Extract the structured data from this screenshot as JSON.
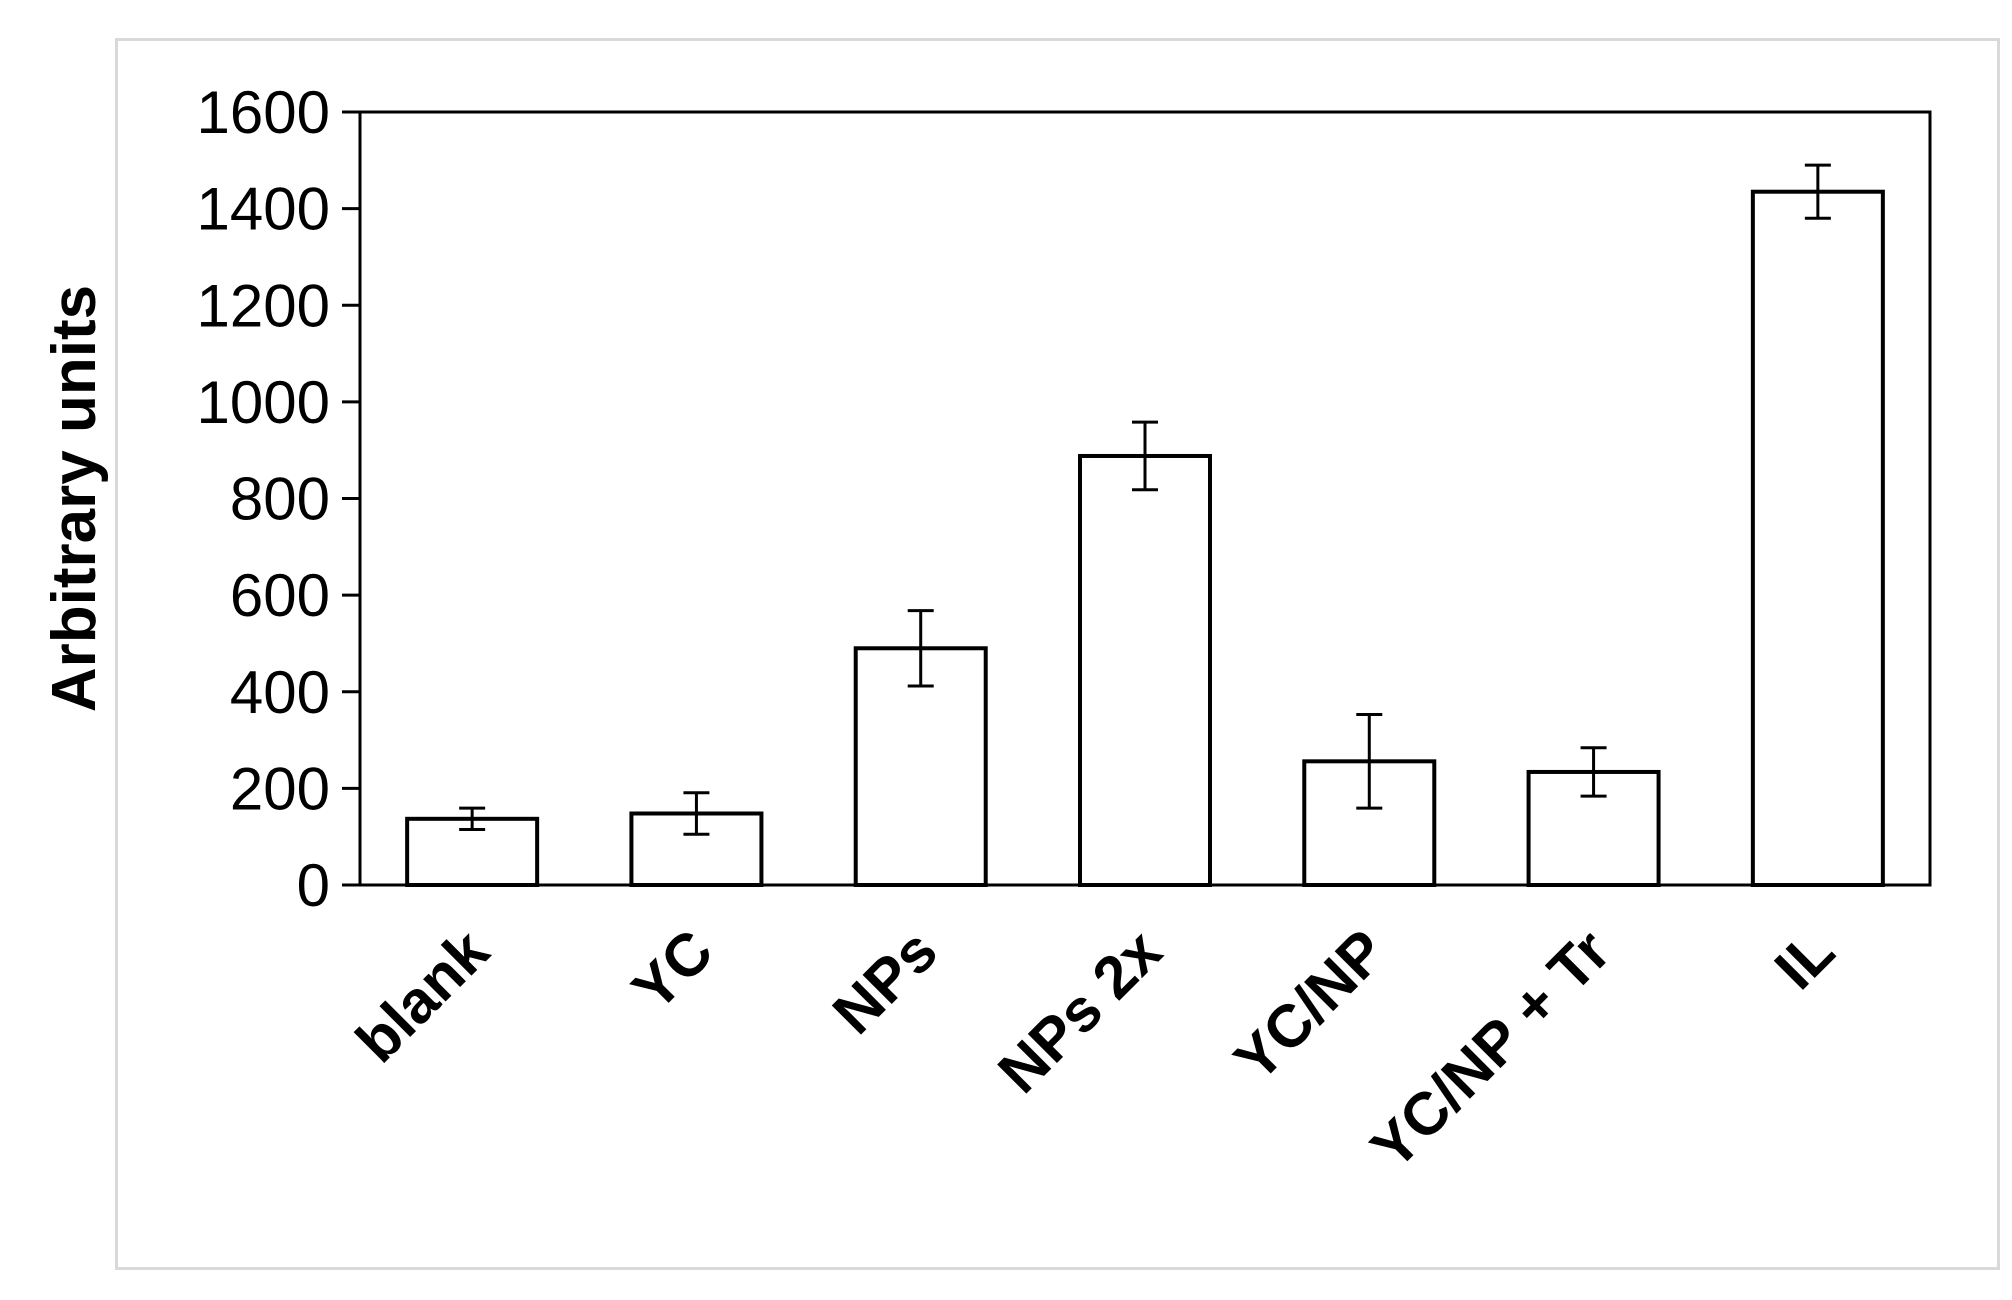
{
  "chart_data": {
    "type": "bar",
    "title": "",
    "xlabel": "",
    "ylabel": "Arbitrary units",
    "categories": [
      "blank",
      "YC",
      "NPs",
      "NPs 2x",
      "YC/NP",
      "YC/NP + Tr",
      "IL"
    ],
    "values": [
      137,
      148,
      490,
      888,
      256,
      234,
      1435
    ],
    "error": [
      22,
      43,
      78,
      70,
      97,
      50,
      55
    ],
    "ylim": [
      0,
      1600
    ],
    "yticks": [
      "0",
      "200",
      "400",
      "600",
      "800",
      "1000",
      "1200",
      "1400",
      "1600"
    ],
    "grid": false,
    "legend": "none",
    "bar_fill": "#ffffff",
    "bar_stroke": "#000000"
  }
}
